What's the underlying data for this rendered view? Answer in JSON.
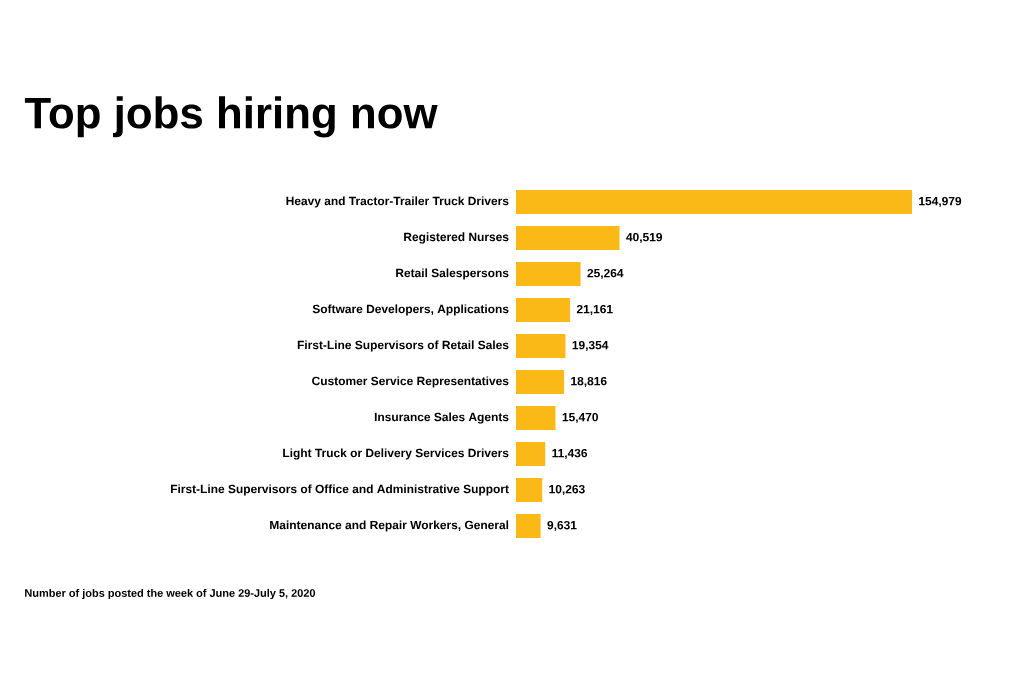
{
  "chart_data": {
    "type": "bar",
    "orientation": "horizontal",
    "title": "Top jobs hiring now",
    "categories": [
      "Heavy and Tractor-Trailer Truck Drivers",
      "Registered Nurses",
      "Retail Salespersons",
      "Software Developers, Applications",
      "First-Line Supervisors of Retail Sales",
      "Customer Service Representatives",
      "Insurance Sales Agents",
      "Light Truck or Delivery Services Drivers",
      "First-Line Supervisors of Office and Administrative Support",
      "Maintenance and Repair Workers, General"
    ],
    "values": [
      154979,
      40519,
      25264,
      21161,
      19354,
      18816,
      15470,
      11436,
      10263,
      9631
    ],
    "value_labels": [
      "154,979",
      "40,519",
      "25,264",
      "21,161",
      "19,354",
      "18,816",
      "15,470",
      "11,436",
      "10,263",
      "9,631"
    ],
    "color": "#fbb917",
    "annotations": [
      "Number of jobs posted the week of June 29-July 5, 2020"
    ]
  }
}
